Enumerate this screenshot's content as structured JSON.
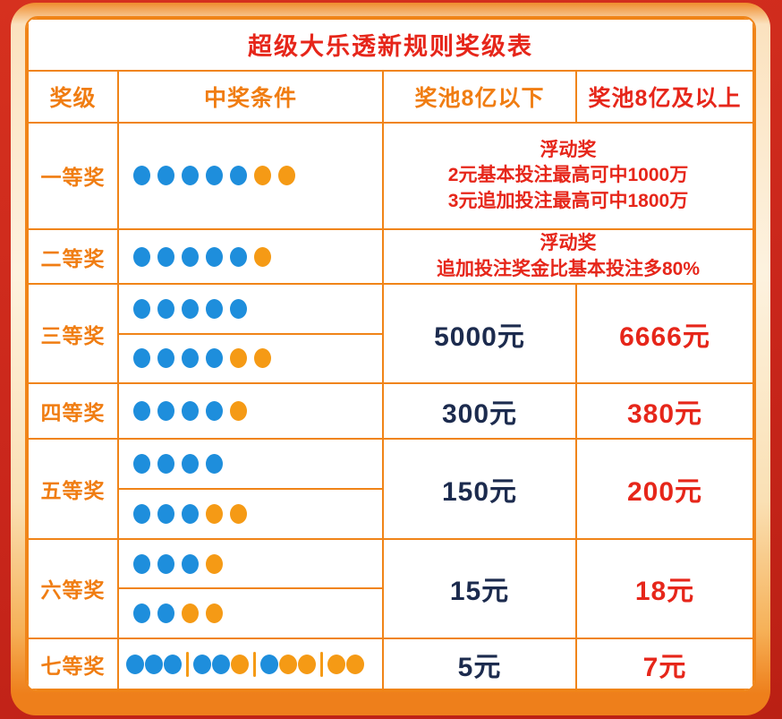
{
  "title": "超级大乐透新规则奖级表",
  "header": {
    "level": "奖级",
    "condition": "中奖条件",
    "below": "奖池8亿以下",
    "above": "奖池8亿及以上"
  },
  "rows": [
    {
      "level": "一等奖",
      "conditions": [
        [
          {
            "blue": 5,
            "orange": 2
          }
        ]
      ],
      "prize_span": [
        "浮动奖",
        "2元基本投注最高可中1000万",
        "3元追加投注最高可中1800万"
      ]
    },
    {
      "level": "二等奖",
      "conditions": [
        [
          {
            "blue": 5,
            "orange": 1
          }
        ]
      ],
      "prize_span": [
        "浮动奖",
        "追加投注奖金比基本投注多80%"
      ]
    },
    {
      "level": "三等奖",
      "conditions": [
        [
          {
            "blue": 5,
            "orange": 0
          }
        ],
        [
          {
            "blue": 4,
            "orange": 2
          }
        ]
      ],
      "prize_below": "5000元",
      "prize_above": "6666元"
    },
    {
      "level": "四等奖",
      "conditions": [
        [
          {
            "blue": 4,
            "orange": 1
          }
        ]
      ],
      "prize_below": "300元",
      "prize_above": "380元"
    },
    {
      "level": "五等奖",
      "conditions": [
        [
          {
            "blue": 4,
            "orange": 0
          }
        ],
        [
          {
            "blue": 3,
            "orange": 2
          }
        ]
      ],
      "prize_below": "150元",
      "prize_above": "200元"
    },
    {
      "level": "六等奖",
      "conditions": [
        [
          {
            "blue": 3,
            "orange": 1
          }
        ],
        [
          {
            "blue": 2,
            "orange": 2
          }
        ]
      ],
      "prize_below": "15元",
      "prize_above": "18元"
    },
    {
      "level": "七等奖",
      "conditions": [
        [
          {
            "blue": 3,
            "orange": 0
          },
          {
            "blue": 2,
            "orange": 1
          },
          {
            "blue": 1,
            "orange": 2
          },
          {
            "blue": 0,
            "orange": 2
          }
        ]
      ],
      "prize_below": "5元",
      "prize_above": "7元"
    }
  ],
  "colors": {
    "blue_ball": "#1e8edc",
    "orange_ball": "#f59a15",
    "orange_text": "#f07d12",
    "red_text": "#e6261a",
    "navy_text": "#1c2b4e",
    "table_border": "#f08418",
    "background_red": "#c9261b"
  },
  "chart_data": {
    "type": "table",
    "title": "超级大乐透新规则奖级表",
    "columns": [
      "奖级",
      "中奖条件",
      "奖池8亿以下",
      "奖池8亿及以上"
    ],
    "rows": [
      {
        "奖级": "一等奖",
        "中奖条件": [
          "5蓝+2橙"
        ],
        "奖金": "浮动奖 2元基本投注最高可中1000万 3元追加投注最高可中1800万"
      },
      {
        "奖级": "二等奖",
        "中奖条件": [
          "5蓝+1橙"
        ],
        "奖金": "浮动奖 追加投注奖金比基本投注多80%"
      },
      {
        "奖级": "三等奖",
        "中奖条件": [
          "5蓝",
          "4蓝+2橙"
        ],
        "奖池8亿以下": "5000元",
        "奖池8亿及以上": "6666元"
      },
      {
        "奖级": "四等奖",
        "中奖条件": [
          "4蓝+1橙"
        ],
        "奖池8亿以下": "300元",
        "奖池8亿及以上": "380元"
      },
      {
        "奖级": "五等奖",
        "中奖条件": [
          "4蓝",
          "3蓝+2橙"
        ],
        "奖池8亿以下": "150元",
        "奖池8亿及以上": "200元"
      },
      {
        "奖级": "六等奖",
        "中奖条件": [
          "3蓝+1橙",
          "2蓝+2橙"
        ],
        "奖池8亿以下": "15元",
        "奖池8亿及以上": "18元"
      },
      {
        "奖级": "七等奖",
        "中奖条件": [
          "3蓝 | 2蓝+1橙 | 1蓝+2橙 | 2橙"
        ],
        "奖池8亿以下": "5元",
        "奖池8亿及以上": "7元"
      }
    ]
  }
}
